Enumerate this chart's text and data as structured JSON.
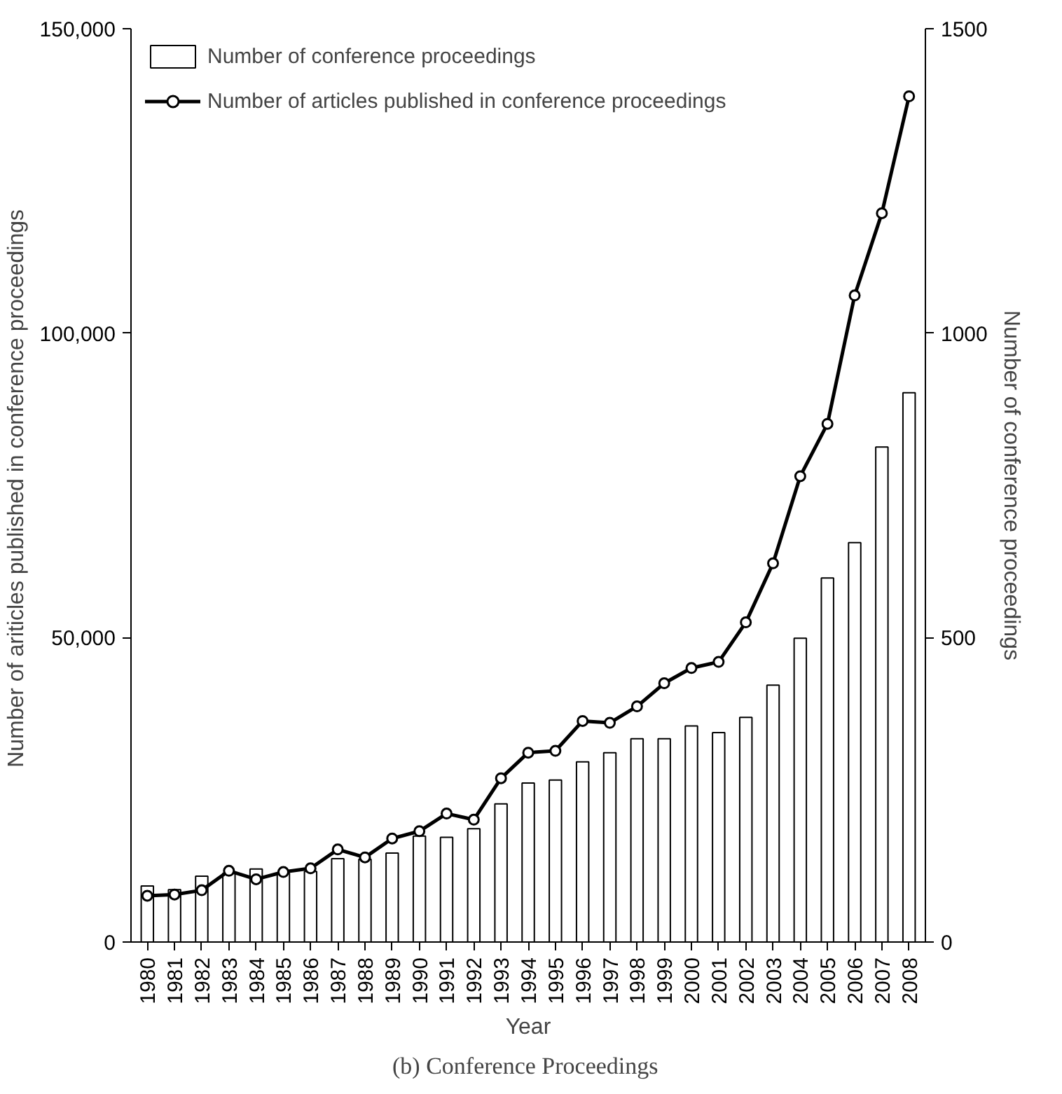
{
  "chart_data": {
    "type": "bar",
    "xlabel": "Year",
    "ylabel": "Number of ariticles published  in conference proceedings",
    "y2label": "Number of conference proceedings",
    "categories": [
      "1980",
      "1981",
      "1982",
      "1983",
      "1984",
      "1985",
      "1986",
      "1987",
      "1988",
      "1989",
      "1990",
      "1991",
      "1992",
      "1993",
      "1994",
      "1995",
      "1996",
      "1997",
      "1998",
      "1999",
      "2000",
      "2001",
      "2002",
      "2003",
      "2004",
      "2005",
      "2006",
      "2007",
      "2008"
    ],
    "series": [
      {
        "name": "Number of conference proceedings",
        "axis": "y2",
        "color": "#ffffff",
        "values": [
          92,
          86,
          108,
          113,
          120,
          113,
          116,
          137,
          136,
          146,
          174,
          172,
          186,
          227,
          261,
          266,
          296,
          311,
          334,
          334,
          355,
          344,
          369,
          422,
          499,
          598,
          656,
          813,
          902
        ]
      },
      {
        "name": "Number of articles published in conference proceedings",
        "type": "line",
        "color": "#000000",
        "values": [
          7600,
          7800,
          8500,
          11700,
          10300,
          11500,
          12100,
          15200,
          13900,
          17000,
          18200,
          21100,
          20100,
          26900,
          31100,
          31400,
          36300,
          36000,
          38700,
          42500,
          45000,
          46000,
          52500,
          62200,
          76500,
          85100,
          106200,
          119700,
          138900
        ]
      }
    ],
    "ylim": [
      0,
      150000
    ],
    "yticks": [
      0,
      {
        "value": 50000,
        "label": "50,000"
      },
      {
        "value": 100000,
        "label": "100,000"
      },
      {
        "value": 150000,
        "label": "150,000"
      }
    ],
    "y2lim": [
      0,
      1500
    ],
    "y2ticks": [
      0,
      500,
      1000,
      1500
    ],
    "legend": "top left",
    "grid": false,
    "marker": "circle",
    "line_style": "solid",
    "annotations": [
      "(b)  Conference Proceedings"
    ]
  }
}
